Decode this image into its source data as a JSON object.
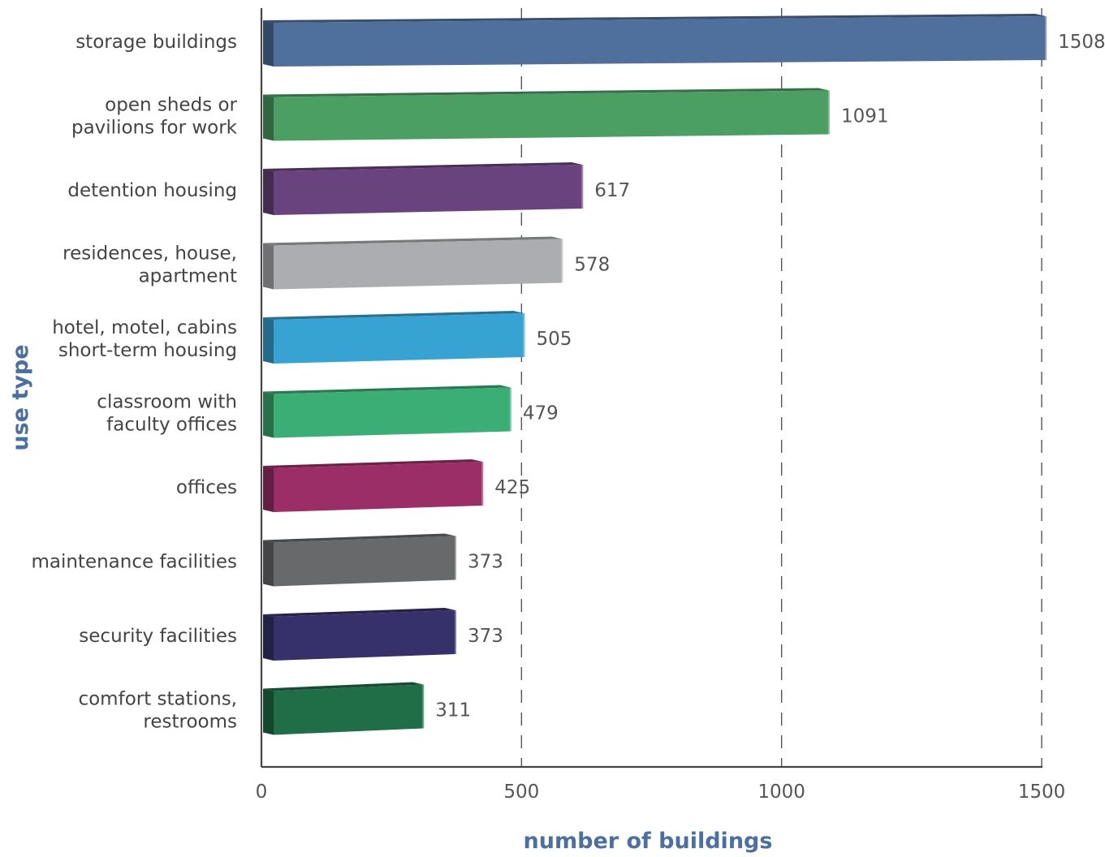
{
  "chart_data": {
    "type": "bar",
    "orientation": "horizontal",
    "title": "",
    "xlabel": "number of buildings",
    "ylabel": "use type",
    "xlim": [
      0,
      1500
    ],
    "xticks": [
      0,
      500,
      1000,
      1500
    ],
    "xtick_labels": [
      "0",
      "500",
      "1000",
      "1500"
    ],
    "grid": "vertical dashed",
    "legend": "none",
    "label_color": "#4a6fa5",
    "categories": [
      {
        "lines": [
          "storage buildings"
        ],
        "value": 1508,
        "label": "1508",
        "color": "#4f6f9c"
      },
      {
        "lines": [
          "open sheds or",
          "pavilions for work"
        ],
        "value": 1091,
        "label": "1091",
        "color": "#4c9f63"
      },
      {
        "lines": [
          "detention housing"
        ],
        "value": 617,
        "label": "617",
        "color": "#68437d"
      },
      {
        "lines": [
          "residences, house,",
          "apartment"
        ],
        "value": 578,
        "label": "578",
        "color": "#acadb0"
      },
      {
        "lines": [
          "hotel, motel, cabins",
          "short-term housing"
        ],
        "value": 505,
        "label": "505",
        "color": "#37a3d3"
      },
      {
        "lines": [
          "classroom with",
          "faculty offices"
        ],
        "value": 479,
        "label": "479",
        "color": "#3aae74"
      },
      {
        "lines": [
          "offices"
        ],
        "value": 425,
        "label": "425",
        "color": "#9c2e67"
      },
      {
        "lines": [
          "maintenance facilities"
        ],
        "value": 373,
        "label": "373",
        "color": "#68696b"
      },
      {
        "lines": [
          "security facilities"
        ],
        "value": 373,
        "label": "373",
        "color": "#36316a"
      },
      {
        "lines": [
          "comfort stations,",
          "restrooms"
        ],
        "value": 311,
        "label": "311",
        "color": "#1f6e47"
      }
    ]
  }
}
